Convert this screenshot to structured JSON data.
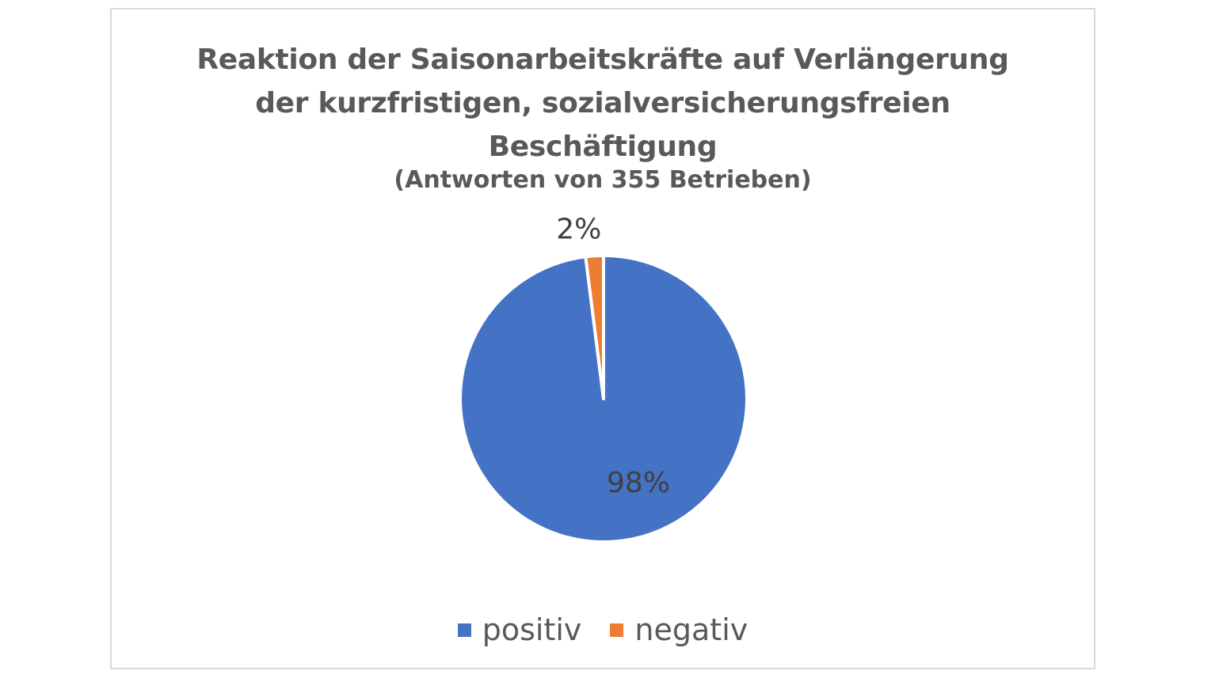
{
  "chart_data": {
    "type": "pie",
    "title_lines": [
      "Reaktion der Saisonarbeitskräfte auf Verlängerung",
      "der kurzfristigen, sozialversicherungsfreien",
      "Beschäftigung"
    ],
    "subtitle": "(Antworten von 355 Betrieben)",
    "slices": [
      {
        "name": "positiv",
        "value": 98,
        "label": "98%",
        "color": "#4472c4"
      },
      {
        "name": "negativ",
        "value": 2,
        "label": "2%",
        "color": "#ed7d31"
      }
    ],
    "legend_position": "bottom"
  }
}
